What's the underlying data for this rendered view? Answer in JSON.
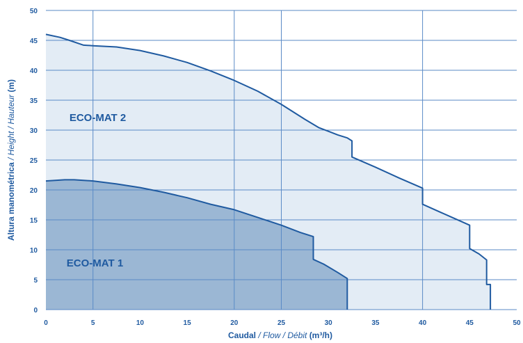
{
  "chart_data": {
    "type": "area",
    "xlim": [
      0,
      50
    ],
    "ylim": [
      0,
      50
    ],
    "x_ticks": [
      "0",
      "5",
      "10",
      "15",
      "20",
      "25",
      "30",
      "35",
      "40",
      "45",
      "50"
    ],
    "y_ticks": [
      "0",
      "5",
      "10",
      "15",
      "20",
      "25",
      "30",
      "35",
      "40",
      "45",
      "50"
    ],
    "grid": {
      "vertical_at": [
        5,
        20,
        25,
        40
      ],
      "horizontal_every": 5
    },
    "xlabel": {
      "bold": "Caudal",
      "italic": " / Flow / Débit ",
      "unit": "(m³/h)"
    },
    "ylabel": {
      "bold": "Altura manométrica",
      "italic": " / Height / Hauteur ",
      "unit": "(m)"
    },
    "series": [
      {
        "name": "ECO-MAT 2",
        "points": [
          [
            0,
            46
          ],
          [
            1.5,
            45.5
          ],
          [
            2.5,
            45
          ],
          [
            4,
            44.2
          ],
          [
            5,
            44.1
          ],
          [
            7.5,
            43.9
          ],
          [
            10,
            43.3
          ],
          [
            12.5,
            42.4
          ],
          [
            15,
            41.3
          ],
          [
            17.5,
            39.9
          ],
          [
            20,
            38.3
          ],
          [
            22.5,
            36.5
          ],
          [
            25,
            34.3
          ],
          [
            27.5,
            31.8
          ],
          [
            29,
            30.4
          ],
          [
            30,
            29.8
          ],
          [
            31,
            29.2
          ],
          [
            32,
            28.7
          ],
          [
            32.5,
            28.2
          ],
          [
            32.5,
            25.5
          ],
          [
            35,
            23.8
          ],
          [
            37.5,
            22
          ],
          [
            40,
            20.3
          ],
          [
            40,
            17.6
          ],
          [
            42,
            16.2
          ],
          [
            44,
            14.8
          ],
          [
            45,
            14.1
          ],
          [
            45,
            10.2
          ],
          [
            46,
            9.3
          ],
          [
            46.8,
            8.3
          ],
          [
            46.8,
            4.2
          ],
          [
            47.2,
            4.2
          ],
          [
            47.2,
            0
          ]
        ],
        "fill": "#e3ecf5",
        "stroke": "#1f5aa0"
      },
      {
        "name": "ECO-MAT 1",
        "points": [
          [
            0,
            21.5
          ],
          [
            1,
            21.6
          ],
          [
            2,
            21.7
          ],
          [
            3,
            21.7
          ],
          [
            5,
            21.5
          ],
          [
            7.5,
            21
          ],
          [
            10,
            20.4
          ],
          [
            12.5,
            19.6
          ],
          [
            15,
            18.7
          ],
          [
            17.5,
            17.6
          ],
          [
            20,
            16.7
          ],
          [
            22.5,
            15.4
          ],
          [
            25,
            14.1
          ],
          [
            27,
            12.9
          ],
          [
            28.4,
            12.2
          ],
          [
            28.4,
            8.4
          ],
          [
            29.5,
            7.6
          ],
          [
            31,
            6.2
          ],
          [
            32,
            5.2
          ],
          [
            32,
            0
          ]
        ],
        "fill": "#9bb7d4",
        "stroke": "#1f5aa0"
      }
    ],
    "labels": [
      {
        "text": "ECO-MAT 2",
        "x": 2.5,
        "y": 31.5
      },
      {
        "text": "ECO-MAT 1",
        "x": 2.2,
        "y": 7.2
      }
    ],
    "colors": {
      "axis_text": "#1f5aa0",
      "grid": "#5a8ac6",
      "label": "#1f5aa0"
    }
  }
}
